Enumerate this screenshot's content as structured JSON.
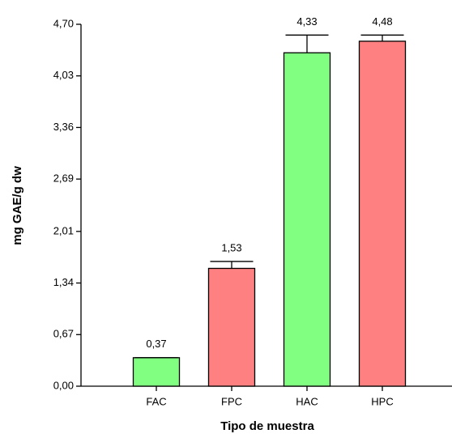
{
  "chart_data": {
    "type": "bar",
    "xlabel": "Tipo de muestra",
    "ylabel": "mg GAE/g dw",
    "categories": [
      "FAC",
      "FPC",
      "HAC",
      "HPC"
    ],
    "values": [
      0.37,
      1.53,
      4.33,
      4.48
    ],
    "value_labels": [
      "0,37",
      "1,53",
      "4,33",
      "4,48"
    ],
    "errors": [
      0,
      0.09,
      0.23,
      0.08
    ],
    "colors": [
      "#80ff80",
      "#ff8080",
      "#80ff80",
      "#ff8080"
    ],
    "ylim": [
      0,
      4.7
    ],
    "yticks": [
      {
        "value": 0,
        "label": "0,00"
      },
      {
        "value": 0.67,
        "label": "0,67"
      },
      {
        "value": 1.34,
        "label": "1,34"
      },
      {
        "value": 2.01,
        "label": "2,01"
      },
      {
        "value": 2.69,
        "label": "2,69"
      },
      {
        "value": 3.36,
        "label": "3,36"
      },
      {
        "value": 4.03,
        "label": "4,03"
      },
      {
        "value": 4.7,
        "label": "4,70"
      }
    ]
  }
}
